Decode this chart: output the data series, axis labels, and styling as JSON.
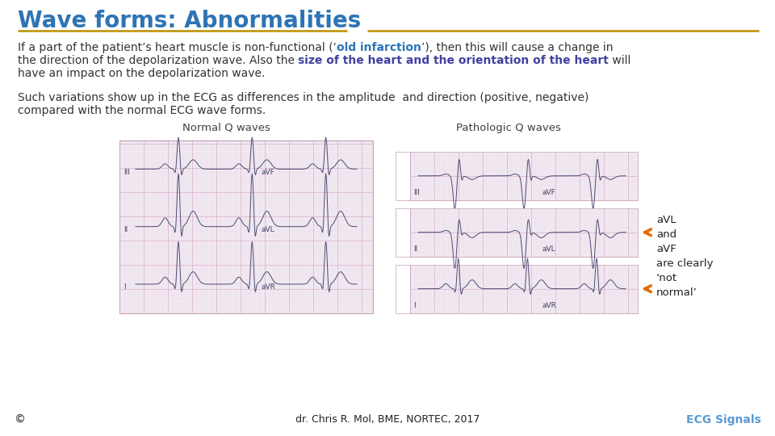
{
  "title": "Wave forms: Abnormalities",
  "title_color": "#2E74B5",
  "title_fontsize": 20,
  "bg_color": "#FFFFFF",
  "footer_bg_color": "#C55A11",
  "footer_text": "dr. Chris R. Mol, BME, NORTEC, 2017",
  "footer_copyright": "©",
  "footer_right": "ECG Signals",
  "footer_right_color": "#5B9BD5",
  "separator_color": "#BF9000",
  "arrow_color": "#E36C09",
  "annotation_text": "aVL\nand\naVF\nare clearly\n‘not\nnormal’",
  "label_normal": "Normal Q waves",
  "label_pathologic": "Pathologic Q waves",
  "ecg_bg": "#F0E8F0",
  "ecg_grid_major": "#D4A0C0",
  "ecg_grid_minor": "#E8D0E0",
  "ecg_line": "#303060",
  "body_fontsize": 10,
  "bold_blue": "#2E74B5",
  "bold_purple": "#4040A0"
}
